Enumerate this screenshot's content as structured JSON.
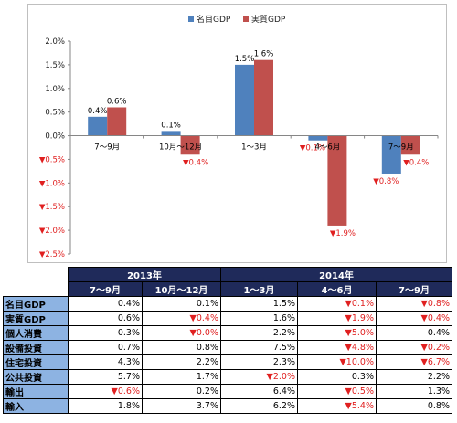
{
  "chart_data": {
    "type": "bar",
    "categories": [
      "7～9月",
      "10月～12月",
      "1～3月",
      "4～6月",
      "7～9月"
    ],
    "series": [
      {
        "name": "名目GDP",
        "color": "#4f81bd",
        "values": [
          0.4,
          0.1,
          1.5,
          -0.1,
          -0.8
        ]
      },
      {
        "name": "実質GDP",
        "color": "#c0504d",
        "values": [
          0.6,
          -0.4,
          1.6,
          -1.9,
          -0.4
        ]
      }
    ],
    "data_labels": {
      "series0": [
        "0.4%",
        "0.1%",
        "1.5%",
        "▼0.1%",
        "▼0.8%"
      ],
      "series1": [
        "0.6%",
        "▼0.4%",
        "1.6%",
        "▼1.9%",
        "▼0.4%"
      ]
    },
    "yticks": [
      {
        "v": 2.0,
        "label": "2.0%"
      },
      {
        "v": 1.5,
        "label": "1.5%"
      },
      {
        "v": 1.0,
        "label": "1.0%"
      },
      {
        "v": 0.5,
        "label": "0.5%"
      },
      {
        "v": 0.0,
        "label": "0.0%"
      },
      {
        "v": -0.5,
        "label": "▼0.5%"
      },
      {
        "v": -1.0,
        "label": "▼1.0%"
      },
      {
        "v": -1.5,
        "label": "▼1.5%"
      },
      {
        "v": -2.0,
        "label": "▼2.0%"
      },
      {
        "v": -2.5,
        "label": "▼2.5%"
      }
    ],
    "ylim": [
      -2.5,
      2.0
    ],
    "legend": "top-center",
    "grid": false
  },
  "table": {
    "year_headers": [
      "2013年",
      "2014年"
    ],
    "period_headers": [
      "7～9月",
      "10月～12月",
      "1～3月",
      "4～6月",
      "7～9月"
    ],
    "rows": [
      {
        "label": "名目GDP",
        "cells": [
          "0.4%",
          "0.1%",
          "1.5%",
          "▼0.1%",
          "▼0.8%"
        ]
      },
      {
        "label": "実質GDP",
        "cells": [
          "0.6%",
          "▼0.4%",
          "1.6%",
          "▼1.9%",
          "▼0.4%"
        ]
      },
      {
        "label": "個人消費",
        "cells": [
          "0.3%",
          "▼0.0%",
          "2.2%",
          "▼5.0%",
          "0.4%"
        ]
      },
      {
        "label": "設備投資",
        "cells": [
          "0.7%",
          "0.8%",
          "7.5%",
          "▼4.8%",
          "▼0.2%"
        ]
      },
      {
        "label": "住宅投資",
        "cells": [
          "4.3%",
          "2.2%",
          "2.3%",
          "▼10.0%",
          "▼6.7%"
        ]
      },
      {
        "label": "公共投資",
        "cells": [
          "5.7%",
          "1.7%",
          "▼2.0%",
          "0.3%",
          "2.2%"
        ]
      },
      {
        "label": "輸出",
        "cells": [
          "▼0.6%",
          "0.2%",
          "6.4%",
          "▼0.5%",
          "1.3%"
        ]
      },
      {
        "label": "輸入",
        "cells": [
          "1.8%",
          "3.7%",
          "6.2%",
          "▼5.4%",
          "0.8%"
        ]
      }
    ]
  }
}
